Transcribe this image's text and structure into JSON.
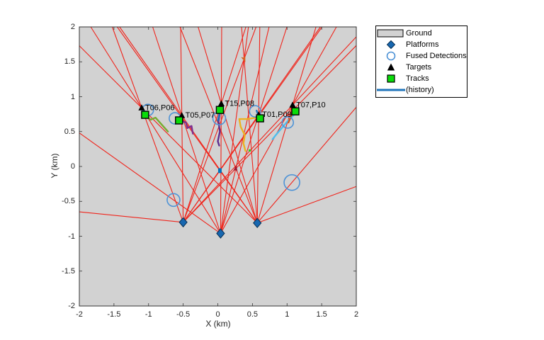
{
  "figure": {
    "background": "#ffffff"
  },
  "axes": {
    "xlabel": "X (km)",
    "ylabel": "Y (km)",
    "xlim": [
      -2,
      2
    ],
    "ylim": [
      -2,
      2
    ],
    "xticks": [
      -2,
      -1.5,
      -1,
      -0.5,
      0,
      0.5,
      1,
      1.5,
      2
    ],
    "xtick_labels": [
      "-2",
      "-1.5",
      "-1",
      "-0.5",
      "0",
      "0.5",
      "1",
      "1.5",
      "2"
    ],
    "yticks": [
      -2,
      -1.5,
      -1,
      -0.5,
      0,
      0.5,
      1,
      1.5,
      2
    ],
    "ytick_labels": [
      "-2",
      "-1.5",
      "-1",
      "-0.5",
      "0",
      "0.5",
      "1",
      "1.5",
      "2"
    ],
    "grid": false,
    "plot_bg": "#d2d2d2",
    "border_color": "#333333"
  },
  "legend": {
    "position": "outside-top-right",
    "items": [
      {
        "label": "Ground",
        "marker": "patch",
        "color": "#d2d2d2",
        "edge": "#000000"
      },
      {
        "label": "Platforms",
        "marker": "diamond",
        "color": "#1767b0",
        "edge": "#072f52"
      },
      {
        "label": "Fused Detections",
        "marker": "circle",
        "color": "#4f93d6",
        "edge": "#4f93d6"
      },
      {
        "label": "Targets",
        "marker": "triangle",
        "color": "#000000",
        "edge": "#000000"
      },
      {
        "label": "Tracks",
        "marker": "square",
        "color": "#09dc09",
        "edge": "#000000"
      },
      {
        "label": "(history)",
        "marker": "line",
        "color": "#1f74bb",
        "edge": "#1f74bb"
      }
    ]
  },
  "chart_data": {
    "type": "scatter",
    "title": "",
    "platforms": {
      "color": "#1767b0",
      "edge": "#072f52",
      "points": [
        [
          -0.5,
          -0.8
        ],
        [
          0.04,
          -0.96
        ],
        [
          0.57,
          -0.81
        ]
      ]
    },
    "targets": {
      "color": "#000000",
      "points": [
        [
          -1.1,
          0.84
        ],
        [
          -0.52,
          0.73
        ],
        [
          0.05,
          0.9
        ],
        [
          0.59,
          0.74
        ],
        [
          1.08,
          0.88
        ]
      ]
    },
    "tracks": {
      "color": "#09dc09",
      "edge": "#000000",
      "points": [
        [
          -1.05,
          0.74
        ],
        [
          -0.56,
          0.66
        ],
        [
          0.03,
          0.81
        ],
        [
          0.61,
          0.69
        ],
        [
          1.12,
          0.79
        ]
      ],
      "labels": [
        "T06,P06",
        "T05,P07",
        "T15,P08",
        "T01,P09",
        "T07,P10"
      ]
    },
    "fused_detections": {
      "color": "#4f93d6",
      "circles": [
        {
          "x": -1.01,
          "y": 0.81,
          "r": 8
        },
        {
          "x": -0.62,
          "y": 0.69,
          "r": 8
        },
        {
          "x": 0.02,
          "y": 0.69,
          "r": 9
        },
        {
          "x": 0.54,
          "y": 0.79,
          "r": 8
        },
        {
          "x": 1.01,
          "y": 0.63,
          "r": 8
        },
        {
          "x": 1.07,
          "y": -0.23,
          "r": 11
        },
        {
          "x": -0.64,
          "y": -0.48,
          "r": 9
        }
      ]
    },
    "bearing_rays": {
      "color": "#f0241b",
      "segments": [
        {
          "p": 0,
          "thru": [
            -1.1,
            0.84
          ]
        },
        {
          "p": 0,
          "thru": [
            -0.52,
            0.73
          ]
        },
        {
          "p": 0,
          "thru": [
            0.05,
            0.9
          ]
        },
        {
          "p": 0,
          "thru": [
            0.59,
            0.74
          ]
        },
        {
          "p": 0,
          "thru": [
            1.08,
            0.88
          ]
        },
        {
          "p": 0,
          "thru": [
            0.38,
            1.54
          ]
        },
        {
          "p": 0,
          "thru": [
            0.26,
            -0.03
          ]
        },
        {
          "p": 0,
          "thru": [
            0.03,
            -0.06
          ]
        },
        {
          "p": 0,
          "thru": [
            -1.95,
            -0.655
          ]
        },
        {
          "p": 1,
          "thru": [
            -1.1,
            0.84
          ]
        },
        {
          "p": 1,
          "thru": [
            -0.52,
            0.73
          ]
        },
        {
          "p": 1,
          "thru": [
            0.05,
            0.9
          ]
        },
        {
          "p": 1,
          "thru": [
            0.59,
            0.74
          ]
        },
        {
          "p": 1,
          "thru": [
            1.08,
            0.88
          ]
        },
        {
          "p": 1,
          "thru": [
            0.38,
            1.54
          ]
        },
        {
          "p": 1,
          "thru": [
            0.26,
            -0.03
          ]
        },
        {
          "p": 1,
          "thru": [
            -0.64,
            -0.48
          ]
        },
        {
          "p": 2,
          "thru": [
            -1.1,
            0.84
          ]
        },
        {
          "p": 2,
          "thru": [
            -0.52,
            0.73
          ]
        },
        {
          "p": 2,
          "thru": [
            0.05,
            0.9
          ]
        },
        {
          "p": 2,
          "thru": [
            0.59,
            0.74
          ]
        },
        {
          "p": 2,
          "thru": [
            1.08,
            0.88
          ]
        },
        {
          "p": 2,
          "thru": [
            0.38,
            1.54
          ]
        },
        {
          "p": 2,
          "thru": [
            0.26,
            -0.03
          ]
        },
        {
          "p": 2,
          "thru": [
            0.03,
            -0.06
          ]
        },
        {
          "p": 2,
          "thru": [
            1.07,
            -0.23
          ]
        },
        {
          "p": 2,
          "thru": [
            1.99,
            -0.29
          ]
        }
      ]
    },
    "trails": [
      {
        "name": "track-T06",
        "color": "#77ac30",
        "points": [
          [
            -1.05,
            0.74
          ],
          [
            -0.97,
            0.67
          ],
          [
            -0.9,
            0.7
          ],
          [
            -0.81,
            0.6
          ],
          [
            -0.72,
            0.5
          ]
        ]
      },
      {
        "name": "history-T06",
        "color": "#1f74bb",
        "points": [
          [
            -1.1,
            0.86
          ],
          [
            -1.04,
            0.75
          ]
        ]
      },
      {
        "name": "track-T05",
        "color": "#7e2f8e",
        "points": [
          [
            -0.56,
            0.66
          ],
          [
            -0.46,
            0.63
          ],
          [
            -0.44,
            0.55
          ],
          [
            -0.38,
            0.58
          ],
          [
            -0.36,
            0.47
          ]
        ]
      },
      {
        "name": "track-T15",
        "color": "#5f2d8e",
        "points": [
          [
            0.03,
            0.78
          ],
          [
            0.01,
            0.64
          ],
          [
            0.03,
            0.5
          ],
          [
            0.0,
            0.36
          ],
          [
            0.02,
            0.3
          ]
        ]
      },
      {
        "name": "history-T15",
        "color": "#1f74bb",
        "points": [
          [
            0.04,
            0.82
          ],
          [
            0.0,
            0.66
          ]
        ]
      },
      {
        "name": "track-T01",
        "color": "#edb120",
        "points": [
          [
            0.55,
            0.7
          ],
          [
            0.43,
            0.68
          ],
          [
            0.31,
            0.68
          ],
          [
            0.33,
            0.57
          ],
          [
            0.39,
            0.45
          ],
          [
            0.37,
            0.33
          ],
          [
            0.4,
            0.22
          ]
        ]
      },
      {
        "name": "history-T01",
        "color": "#1f74bb",
        "points": [
          [
            0.56,
            0.8
          ],
          [
            0.6,
            0.7
          ]
        ]
      },
      {
        "name": "track-T07",
        "color": "#4dbeee",
        "points": [
          [
            1.12,
            0.76
          ],
          [
            1.01,
            0.65
          ],
          [
            0.94,
            0.57
          ],
          [
            0.88,
            0.5
          ],
          [
            0.83,
            0.44
          ],
          [
            0.79,
            0.39
          ]
        ]
      },
      {
        "name": "track-T07-alt",
        "color": "#d95319",
        "points": [
          [
            1.08,
            0.77
          ],
          [
            1.02,
            0.63
          ]
        ]
      }
    ],
    "extra_markers": [
      {
        "name": "untracked-target-orange",
        "type": "arrow",
        "color": "#d95f1e",
        "x": 0.38,
        "y": 1.54,
        "angle": 160
      },
      {
        "name": "untracked-target-darkred",
        "type": "arrow",
        "color": "#a2142f",
        "x": 0.26,
        "y": -0.03,
        "angle": 10
      },
      {
        "name": "small-platform-dot",
        "type": "dot",
        "color": "#0072bd",
        "x": 0.03,
        "y": -0.06
      },
      {
        "name": "residual-dot-green",
        "type": "smalldot",
        "color": "#1fd01f",
        "x": 0.46,
        "y": 0.23
      }
    ]
  }
}
